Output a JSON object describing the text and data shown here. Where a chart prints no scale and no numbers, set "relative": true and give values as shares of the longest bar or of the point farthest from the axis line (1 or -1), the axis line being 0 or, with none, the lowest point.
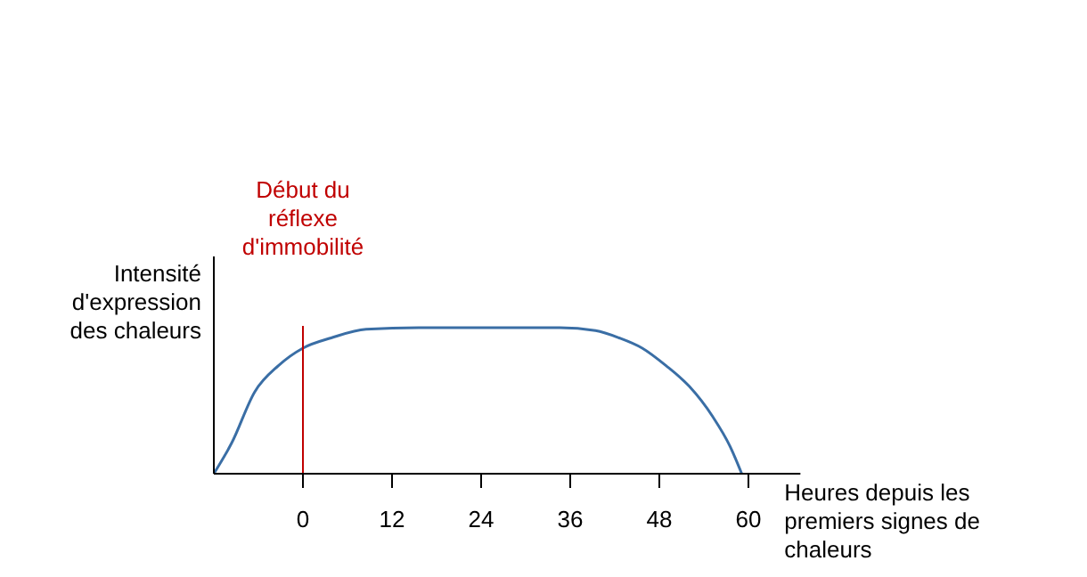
{
  "chart_data": {
    "type": "line",
    "relative": true,
    "xlabel": "Heures depuis les premiers signes de chaleurs",
    "ylabel": "Intensité d'expression des chaleurs",
    "xlim": [
      -12,
      67
    ],
    "xticks": [
      0,
      12,
      24,
      36,
      48,
      60
    ],
    "series": [
      {
        "color": "#3a6ea5",
        "x": [
          -12,
          -9.6,
          -6.5,
          -3.3,
          0,
          3.8,
          8.5,
          15.6,
          24,
          34.6,
          39.4,
          42.6,
          45.7,
          48.9,
          52,
          55.2,
          57.5,
          59.1
        ],
        "values": [
          0,
          0.21,
          0.56,
          0.74,
          0.86,
          0.93,
          0.99,
          1,
          1,
          1,
          0.98,
          0.93,
          0.86,
          0.74,
          0.6,
          0.39,
          0.19,
          0
        ]
      }
    ],
    "ref_lines": [
      {
        "axis": "x",
        "value": 0,
        "label": "Début du réflexe d'immobilité",
        "color": "#c00000"
      }
    ]
  }
}
